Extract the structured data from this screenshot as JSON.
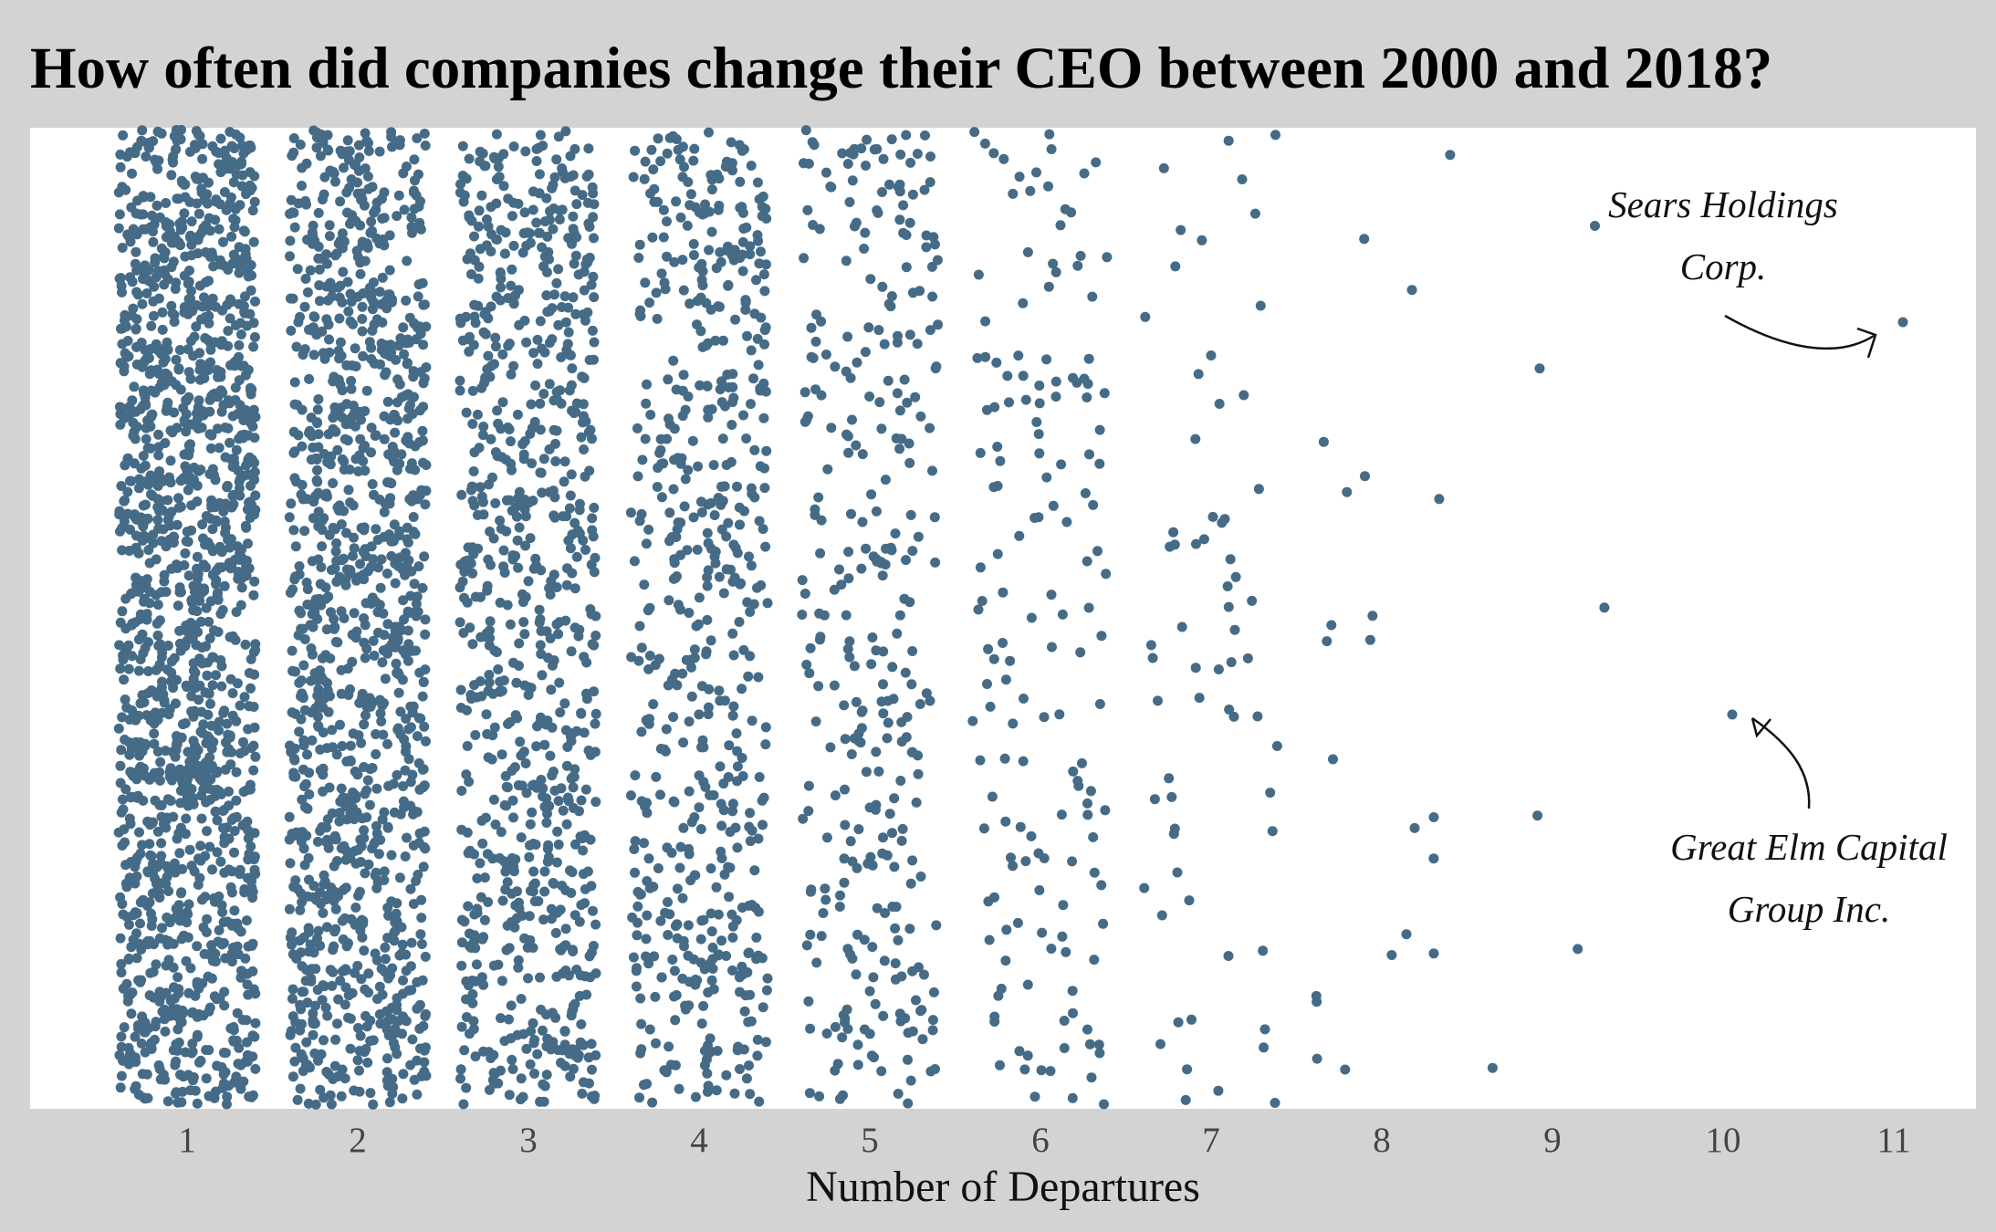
{
  "chart_data": {
    "type": "scatter",
    "title": "How often did companies change their CEO between 2000 and 2018?",
    "xlabel": "Number of Departures",
    "ylabel": "",
    "x_ticks": [
      1,
      2,
      3,
      4,
      5,
      6,
      7,
      8,
      9,
      10,
      11
    ],
    "xlim": [
      0.1,
      11.5
    ],
    "grid": false,
    "legend": "none",
    "point_color": "#456b87",
    "plot_background": "#ffffff",
    "page_background": "#d3d3d3",
    "jitter": "horizontal and vertical random jitter within each departure count",
    "companies_per_departure_count": [
      {
        "departures": 1,
        "count": 1500
      },
      {
        "departures": 2,
        "count": 1150
      },
      {
        "departures": 3,
        "count": 820
      },
      {
        "departures": 4,
        "count": 580
      },
      {
        "departures": 5,
        "count": 330
      },
      {
        "departures": 6,
        "count": 160
      },
      {
        "departures": 7,
        "count": 65
      },
      {
        "departures": 8,
        "count": 22
      },
      {
        "departures": 9,
        "count": 6
      },
      {
        "departures": 10,
        "count": 1
      },
      {
        "departures": 11,
        "count": 1
      }
    ],
    "annotations": [
      {
        "lines": [
          "Sears Holdings",
          "Corp."
        ],
        "departures": 11
      },
      {
        "lines": [
          "Great Elm Capital",
          "Group Inc."
        ],
        "departures": 10
      }
    ]
  }
}
